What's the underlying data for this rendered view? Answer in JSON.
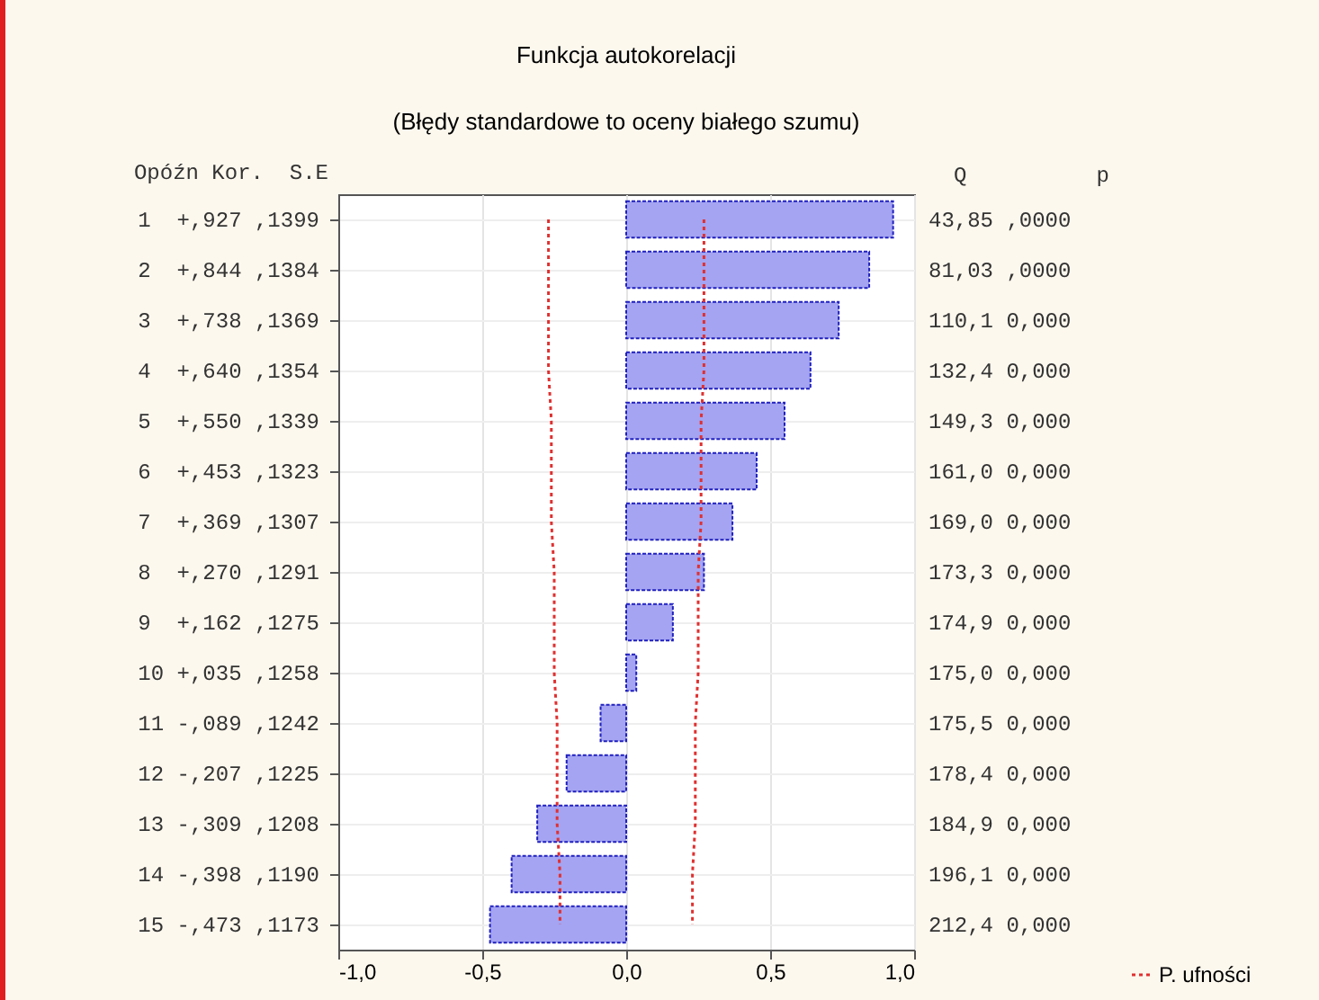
{
  "chart_data": {
    "type": "bar",
    "orientation": "horizontal",
    "title": "Funkcja autokorelacji",
    "subtitle": "(Błędy standardowe to oceny białego szumu)",
    "ylabel": "Opóźn Kor.  S.E",
    "y2label": "Q          p",
    "categories": [
      "1  +,927 ,1399",
      "2  +,844 ,1384",
      "3  +,738 ,1369",
      "4  +,640 ,1354",
      "5  +,550 ,1339",
      "6  +,453 ,1323",
      "7  +,369 ,1307",
      "8  +,270 ,1291",
      "9  +,162 ,1275",
      "10 +,035 ,1258",
      "11 -,089 ,1242",
      "12 -,207 ,1225",
      "13 -,309 ,1208",
      "14 -,398 ,1190",
      "15 -,473 ,1173"
    ],
    "series": [
      {
        "color": "#a4a4f2",
        "values": [
          0.927,
          0.844,
          0.738,
          0.64,
          0.55,
          0.453,
          0.369,
          0.27,
          0.162,
          0.035,
          -0.089,
          -0.207,
          -0.309,
          -0.398,
          -0.473
        ]
      },
      {
        "type": "line",
        "name": "P. ufności",
        "color": "#e03030",
        "line_style": "dotted",
        "values": [
          0.27,
          0.27,
          0.27,
          0.27,
          0.26,
          0.26,
          0.26,
          0.25,
          0.25,
          0.25,
          0.24,
          0.24,
          0.24,
          0.23,
          0.23
        ]
      },
      {
        "type": "line",
        "color": "#e03030",
        "line_style": "dotted",
        "values": [
          -0.27,
          -0.27,
          -0.27,
          -0.27,
          -0.26,
          -0.26,
          -0.26,
          -0.25,
          -0.25,
          -0.25,
          -0.24,
          -0.24,
          -0.24,
          -0.23,
          -0.23
        ]
      }
    ],
    "annotations": [
      "43,85 ,0000",
      "81,03 ,0000",
      "110,1 0,000",
      "132,4 0,000",
      "149,3 0,000",
      "161,0 0,000",
      "169,0 0,000",
      "173,3 0,000",
      "174,9 0,000",
      "175,0 0,000",
      "175,5 0,000",
      "178,4 0,000",
      "184,9 0,000",
      "196,1 0,000",
      "212,4 0,000"
    ],
    "xlim": [
      -1,
      1
    ],
    "xticks": [
      {
        "value": -1,
        "label": "-1,0"
      },
      {
        "value": -0.5,
        "label": "-0,5"
      },
      {
        "value": 0,
        "label": "0,0"
      },
      {
        "value": 0.5,
        "label": "0,5"
      },
      {
        "value": 1,
        "label": "1,0"
      }
    ],
    "grid": true,
    "legend": "bottom right"
  }
}
